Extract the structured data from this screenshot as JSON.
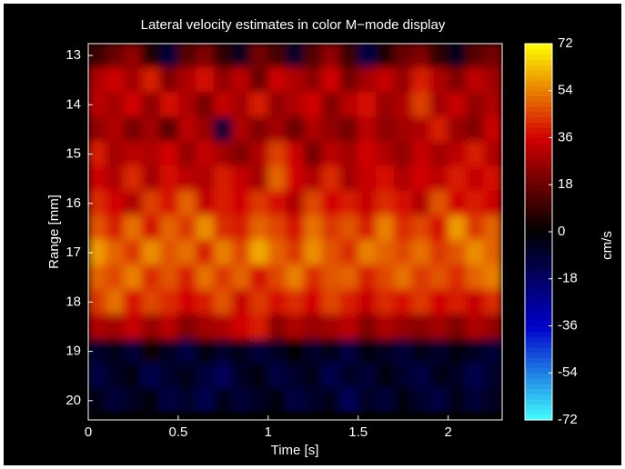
{
  "chart_data": {
    "type": "heatmap",
    "title": "Lateral velocity estimates in color M−mode display",
    "x_label": "Time [s]",
    "y_label": "Range [mm]",
    "x": [
      0.05,
      0.15,
      0.25,
      0.35,
      0.45,
      0.55,
      0.65,
      0.75,
      0.85,
      0.95,
      1.05,
      1.15,
      1.25,
      1.35,
      1.45,
      1.55,
      1.65,
      1.75,
      1.85,
      1.95,
      2.05,
      2.15,
      2.25
    ],
    "y": [
      13,
      13.5,
      14,
      14.5,
      15,
      15.5,
      16,
      16.5,
      17,
      17.5,
      18,
      18.5,
      19,
      19.5,
      20
    ],
    "values": [
      [
        10,
        18,
        25,
        5,
        -10,
        15,
        22,
        8,
        -5,
        20,
        12,
        -8,
        15,
        25,
        10,
        -12,
        5,
        18,
        22,
        8,
        -5,
        15,
        20
      ],
      [
        30,
        35,
        28,
        40,
        22,
        30,
        38,
        25,
        32,
        18,
        35,
        30,
        24,
        36,
        20,
        28,
        34,
        26,
        40,
        30,
        22,
        33,
        28
      ],
      [
        32,
        28,
        36,
        24,
        38,
        30,
        20,
        34,
        28,
        40,
        25,
        30,
        36,
        22,
        32,
        38,
        26,
        30,
        45,
        28,
        34,
        25,
        30
      ],
      [
        25,
        30,
        20,
        28,
        15,
        32,
        26,
        -10,
        30,
        22,
        28,
        18,
        30,
        25,
        20,
        32,
        24,
        28,
        30,
        40,
        26,
        22,
        35
      ],
      [
        40,
        28,
        32,
        30,
        36,
        25,
        34,
        28,
        22,
        30,
        45,
        35,
        20,
        32,
        28,
        36,
        30,
        25,
        34,
        28,
        32,
        40,
        30
      ],
      [
        35,
        30,
        42,
        28,
        38,
        32,
        30,
        40,
        34,
        28,
        50,
        36,
        30,
        42,
        28,
        34,
        38,
        30,
        36,
        32,
        40,
        34,
        38
      ],
      [
        42,
        36,
        30,
        45,
        38,
        50,
        34,
        40,
        36,
        44,
        38,
        30,
        46,
        36,
        40,
        34,
        42,
        38,
        30,
        48,
        36,
        40,
        35
      ],
      [
        48,
        40,
        52,
        38,
        50,
        44,
        56,
        42,
        40,
        50,
        46,
        38,
        52,
        44,
        48,
        40,
        54,
        42,
        46,
        38,
        58,
        44,
        50
      ],
      [
        58,
        50,
        44,
        56,
        48,
        52,
        40,
        54,
        46,
        60,
        50,
        44,
        56,
        48,
        42,
        54,
        50,
        46,
        52,
        44,
        48,
        56,
        50
      ],
      [
        50,
        46,
        54,
        42,
        48,
        40,
        52,
        44,
        50,
        38,
        46,
        54,
        42,
        48,
        50,
        40,
        46,
        52,
        44,
        48,
        42,
        50,
        54
      ],
      [
        44,
        52,
        38,
        46,
        42,
        36,
        40,
        48,
        34,
        44,
        38,
        42,
        36,
        46,
        40,
        34,
        42,
        38,
        44,
        36,
        40,
        34,
        42
      ],
      [
        30,
        28,
        34,
        26,
        32,
        22,
        28,
        30,
        36,
        40,
        24,
        30,
        26,
        28,
        32,
        22,
        30,
        26,
        24,
        28,
        22,
        30,
        26
      ],
      [
        -8,
        -4,
        -10,
        2,
        -6,
        -12,
        -2,
        -8,
        -4,
        -10,
        -6,
        0,
        -8,
        -4,
        -12,
        -2,
        -6,
        -10,
        -4,
        -8,
        -2,
        -6,
        -10
      ],
      [
        -12,
        -6,
        -2,
        -14,
        -8,
        -4,
        -10,
        -16,
        -6,
        -2,
        -12,
        -8,
        -4,
        -14,
        -6,
        -10,
        -2,
        -8,
        -12,
        -4,
        -6,
        -14,
        -8
      ],
      [
        -4,
        -10,
        -6,
        -2,
        -12,
        -8,
        -14,
        -4,
        -10,
        -6,
        -2,
        -12,
        -8,
        -4,
        -16,
        -6,
        -10,
        -2,
        -8,
        -12,
        -4,
        -10,
        -6
      ]
    ],
    "xlim": [
      0,
      2.3
    ],
    "xticks": [
      0,
      0.5,
      1,
      1.5,
      2
    ],
    "ylim": [
      12.76,
      20.39
    ],
    "yticks": [
      13,
      14,
      15,
      16,
      17,
      18,
      19,
      20
    ],
    "y_inverted": true,
    "colorbar": {
      "label": "cm/s",
      "lim": [
        -72,
        72
      ],
      "ticks": [
        72,
        54,
        36,
        18,
        0,
        -18,
        -36,
        -54,
        -72
      ],
      "colors": [
        "#40ffff",
        "#0000c8",
        "#000000",
        "#d20000",
        "#ffff00"
      ]
    }
  }
}
